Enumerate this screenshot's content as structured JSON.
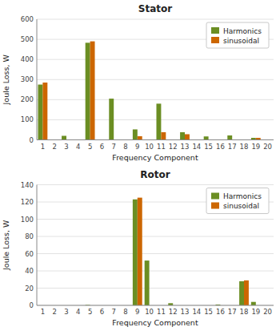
{
  "chart_data": [
    {
      "type": "bar",
      "title": "Stator",
      "x_label": "Frequency Component",
      "y_label": "Joule Loss, W",
      "categories": [
        1,
        2,
        3,
        4,
        5,
        6,
        7,
        8,
        9,
        10,
        11,
        12,
        13,
        14,
        15,
        16,
        17,
        18,
        19,
        20
      ],
      "series": [
        {
          "name": "Harmonics",
          "color": "#6b8e23",
          "values": [
            275,
            2,
            20,
            2,
            483,
            2,
            205,
            2,
            52,
            2,
            180,
            2,
            38,
            2,
            17,
            2,
            22,
            2,
            10,
            2
          ]
        },
        {
          "name": "sinusoidal",
          "color": "#cc6600",
          "values": [
            285,
            0,
            0,
            0,
            490,
            0,
            0,
            0,
            18,
            0,
            38,
            0,
            28,
            0,
            0,
            0,
            0,
            0,
            10,
            0
          ]
        }
      ],
      "ylim": [
        0,
        600
      ],
      "yticks": [
        0,
        100,
        200,
        300,
        400,
        500,
        600
      ],
      "grid": true,
      "legend": "upper right"
    },
    {
      "type": "bar",
      "title": "Rotor",
      "x_label": "Frequency Component",
      "y_label": "Joule Loss, W",
      "categories": [
        1,
        2,
        3,
        4,
        5,
        6,
        7,
        8,
        9,
        10,
        11,
        12,
        13,
        14,
        15,
        16,
        17,
        18,
        19,
        20
      ],
      "series": [
        {
          "name": "Harmonics",
          "color": "#6b8e23",
          "values": [
            0,
            0,
            0,
            0,
            0.5,
            0,
            0,
            0,
            123,
            52,
            0,
            2.5,
            0,
            0,
            0,
            1,
            0,
            28,
            4,
            0
          ]
        },
        {
          "name": "sinusoidal",
          "color": "#cc6600",
          "values": [
            0,
            0,
            0,
            0,
            0,
            0,
            0,
            0,
            125,
            0,
            0,
            0,
            0,
            0,
            0,
            0,
            0,
            29,
            0,
            0
          ]
        }
      ],
      "ylim": [
        0,
        140
      ],
      "yticks": [
        0,
        20,
        40,
        60,
        80,
        100,
        120,
        140
      ],
      "grid": true,
      "legend": "upper right"
    }
  ]
}
